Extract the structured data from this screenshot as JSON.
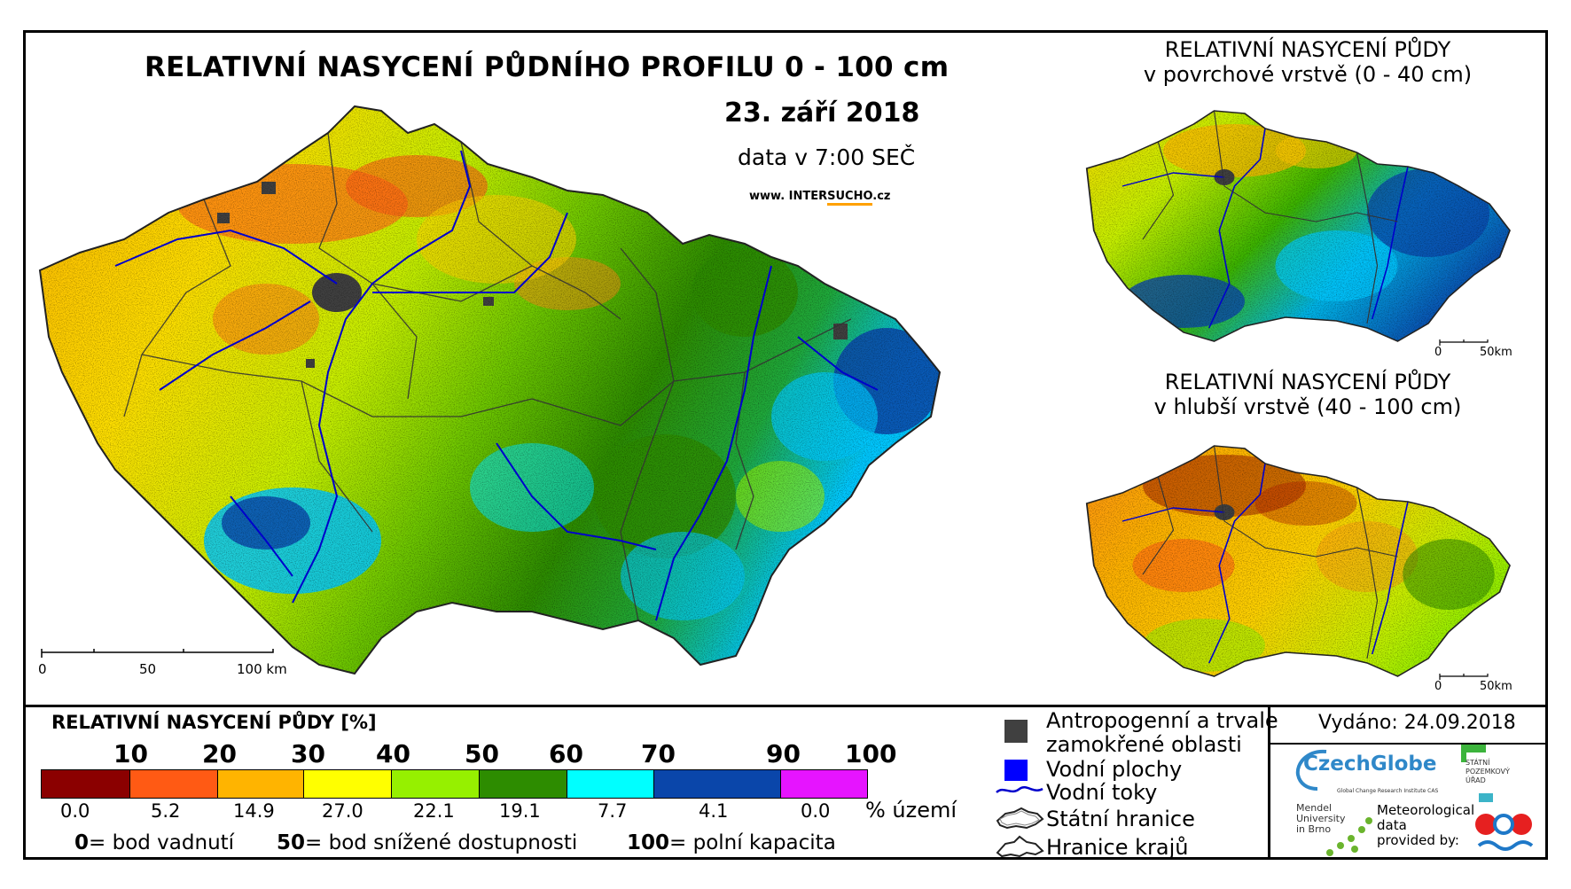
{
  "main_map": {
    "title": "RELATIVNÍ NASYCENÍ PŮDNÍHO PROFILU 0 - 100 cm",
    "date": "23. září 2018",
    "time": "data v 7:00 SEČ",
    "website_prefix": "www. INTER",
    "website_brand": "SUCHO",
    "website_suffix": ".cz",
    "scale": [
      "0",
      "50",
      "100 km"
    ]
  },
  "insets": [
    {
      "title_line1": "RELATIVNÍ NASYCENÍ PŮDY",
      "title_line2": "v povrchové vrstvě (0 - 40 cm)",
      "scale": [
        "0",
        "50km"
      ]
    },
    {
      "title_line1": "RELATIVNÍ NASYCENÍ PŮDY",
      "title_line2": "v hlubší vrstvě (40 - 100 cm)",
      "scale": [
        "0",
        "50km"
      ]
    }
  ],
  "legend": {
    "title": "RELATIVNÍ NASYCENÍ PŮDY [%]",
    "ticks": [
      "10",
      "20",
      "30",
      "40",
      "50",
      "60",
      "70",
      "90",
      "100"
    ],
    "classes": [
      {
        "color": "#8b0000",
        "pct": "0.0"
      },
      {
        "color": "#ff5a14",
        "pct": "5.2"
      },
      {
        "color": "#ffb400",
        "pct": "14.9"
      },
      {
        "color": "#ffff00",
        "pct": "27.0"
      },
      {
        "color": "#96f000",
        "pct": "22.1"
      },
      {
        "color": "#2d8c00",
        "pct": "19.1"
      },
      {
        "color": "#00ffff",
        "pct": "7.7"
      },
      {
        "color": "#0a46aa",
        "pct": "4.1"
      },
      {
        "color": "#e614ff",
        "pct": "0.0"
      }
    ],
    "pct_unit": "% území",
    "explain": [
      {
        "num": "0",
        "text": "= bod vadnutí"
      },
      {
        "num": "50",
        "text": "= bod snížené dostupnosti"
      },
      {
        "num": "100",
        "text": "= polní kapacita"
      }
    ]
  },
  "symbols": [
    {
      "icon": "anthropogenic-square-icon",
      "label_line1": "Antropogenní a trvale",
      "label_line2": "zamokřené oblasti",
      "color": "#404040"
    },
    {
      "icon": "water-body-square-icon",
      "label_line1": "Vodní plochy",
      "label_line2": "",
      "color": "#0000ff"
    },
    {
      "icon": "river-line-icon",
      "label_line1": "Vodní toky",
      "label_line2": "",
      "color": "#0000cc"
    },
    {
      "icon": "state-border-icon",
      "label_line1": "Státní hranice",
      "label_line2": ""
    },
    {
      "icon": "region-border-icon",
      "label_line1": "Hranice krajů",
      "label_line2": ""
    }
  ],
  "issued": "Vydáno: 24.09.2018",
  "logos": {
    "czechglobe": "CzechGlobe",
    "czechglobe_sub": "Global Change Research Institute CAS",
    "szu_line1": "STÁTNÍ",
    "szu_line2": "POZEMKOVÝ",
    "szu_line3": "ÚŘAD",
    "mendel_line1": "Mendel",
    "mendel_line2": "University",
    "mendel_line3": "in Brno",
    "meteo_line1": "Meteorological",
    "meteo_line2": "data",
    "meteo_line3": "provided by:"
  }
}
